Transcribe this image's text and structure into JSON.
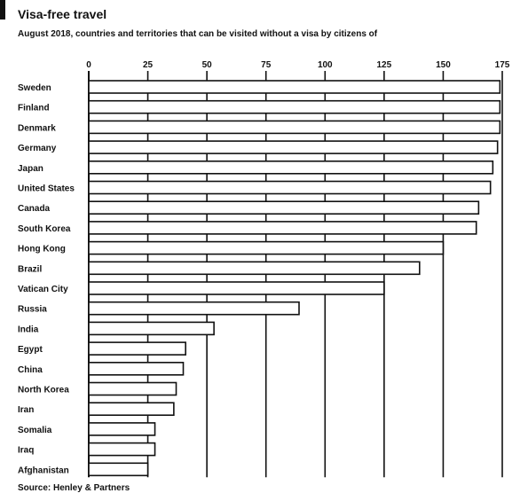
{
  "header": {
    "title": "Visa-free travel",
    "subtitle": "August 2018, countries and territories that can be visited without a visa by citizens of"
  },
  "footer": {
    "source": "Source: Henley & Partners"
  },
  "chart_data": {
    "type": "bar",
    "orientation": "horizontal",
    "title": "Visa-free travel",
    "subtitle": "August 2018, countries and territories that can be visited without a visa by citizens of",
    "xlabel": "",
    "ylabel": "",
    "xlim": [
      0,
      175
    ],
    "x_ticks": [
      0,
      25,
      50,
      75,
      100,
      125,
      150,
      175
    ],
    "grid": true,
    "categories": [
      "Sweden",
      "Finland",
      "Denmark",
      "Germany",
      "Japan",
      "United States",
      "Canada",
      "South Korea",
      "Hong Kong",
      "Brazil",
      "Vatican City",
      "Russia",
      "India",
      "Egypt",
      "China",
      "North Korea",
      "Iran",
      "Somalia",
      "Iraq",
      "Afghanistan"
    ],
    "values": [
      174,
      174,
      174,
      173,
      171,
      170,
      165,
      164,
      150,
      140,
      125,
      89,
      53,
      41,
      40,
      37,
      36,
      28,
      28,
      25
    ]
  }
}
